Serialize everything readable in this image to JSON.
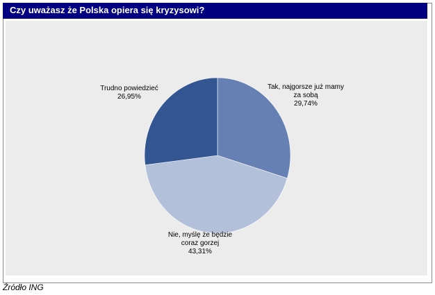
{
  "header": {
    "title": "Czy uważasz że Polska opiera się kryzysowi?"
  },
  "footer": {
    "source": "Źródło ING"
  },
  "chart_data": {
    "type": "pie",
    "title": "Czy uważasz że Polska opiera się kryzysowi?",
    "slices": [
      {
        "lines": [
          "Tak, najgorsze już mamy",
          "za sobą"
        ],
        "value": 29.74,
        "value_label": "29,74%",
        "color": "#6680b3"
      },
      {
        "lines": [
          "Nie, myślę że będzie",
          "coraz gorzej"
        ],
        "value": 43.31,
        "value_label": "43,31%",
        "color": "#b3c0d9"
      },
      {
        "lines": [
          "Trudno powiedzieć"
        ],
        "value": 26.95,
        "value_label": "26,95%",
        "color": "#335591"
      }
    ],
    "legend": "none"
  }
}
